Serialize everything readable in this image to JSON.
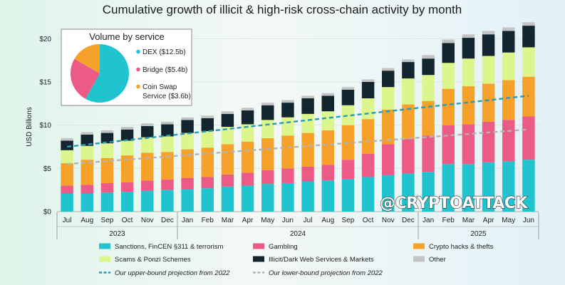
{
  "colors": {
    "sanctions": "#1fc4cf",
    "gambling": "#ec5a86",
    "hacks": "#f5a12a",
    "scams": "#dcf58c",
    "darkweb": "#132630",
    "other": "#c4c4c4",
    "upper_proj": "#2a9bb5",
    "lower_proj": "#b4b4b4",
    "pie_dex": "#1fc4cf",
    "pie_bridge": "#ec5a86",
    "pie_swap": "#f5a12a"
  },
  "watermark": "@CRYPTOATTACK",
  "chart_data": {
    "type": "bar",
    "stacked": true,
    "title": "Cumulative growth of illicit & high-risk cross-chain activity by month",
    "ylabel": "USD Billions",
    "xlabel": "",
    "ylim": [
      0,
      22
    ],
    "yticks": [
      0,
      5,
      10,
      15,
      20
    ],
    "ytick_labels": [
      "$0",
      "$5",
      "$10",
      "$15",
      "$20"
    ],
    "categories": [
      "Jul",
      "Aug",
      "Sep",
      "Oct",
      "Nov",
      "Dec",
      "Jan",
      "Feb",
      "Mar",
      "Apr",
      "May",
      "Jun",
      "Jul",
      "Aug",
      "Sep",
      "Oct",
      "Nov",
      "Dec",
      "Jan",
      "Feb",
      "Mar",
      "Apr",
      "May",
      "Jun"
    ],
    "year_groups": [
      {
        "label": "2023",
        "start": 0,
        "end": 5
      },
      {
        "label": "2024",
        "start": 6,
        "end": 17
      },
      {
        "label": "2025",
        "start": 18,
        "end": 23
      }
    ],
    "series": [
      {
        "name": "Sanctions, FinCEN §311 & terrorism",
        "key": "sanctions",
        "values": [
          2.1,
          2.1,
          2.2,
          2.3,
          2.4,
          2.5,
          2.6,
          2.7,
          2.9,
          3.0,
          3.2,
          3.3,
          3.5,
          3.6,
          3.8,
          4.0,
          4.2,
          4.4,
          4.6,
          5.5,
          5.5,
          5.7,
          5.8,
          6.0
        ]
      },
      {
        "name": "Gambling",
        "key": "gambling",
        "values": [
          0.9,
          1.0,
          1.1,
          1.1,
          1.2,
          1.2,
          1.3,
          1.3,
          1.4,
          1.5,
          1.6,
          1.7,
          1.7,
          1.8,
          2.2,
          2.7,
          3.6,
          4.0,
          4.2,
          4.5,
          4.6,
          4.7,
          4.8,
          5.0
        ]
      },
      {
        "name": "Crypto hacks & thefts",
        "key": "hacks",
        "values": [
          2.6,
          2.9,
          2.9,
          3.1,
          3.2,
          3.2,
          3.3,
          3.4,
          3.5,
          3.6,
          3.7,
          3.8,
          3.9,
          4.0,
          4.0,
          4.0,
          4.0,
          4.0,
          4.0,
          4.2,
          4.4,
          4.4,
          4.6,
          4.6
        ]
      },
      {
        "name": "Scams & Ponzi Schemes",
        "key": "scams",
        "values": [
          1.5,
          1.6,
          1.7,
          1.7,
          1.8,
          1.8,
          1.9,
          1.9,
          2.0,
          2.0,
          2.1,
          2.1,
          2.2,
          2.2,
          2.3,
          2.4,
          2.6,
          3.0,
          3.0,
          3.0,
          3.2,
          3.2,
          3.2,
          3.4
        ]
      },
      {
        "name": "Illicit/Dark Web Services & Markets",
        "key": "darkweb",
        "values": [
          1.1,
          1.3,
          1.2,
          1.3,
          1.3,
          1.4,
          1.5,
          1.5,
          1.5,
          1.6,
          1.7,
          1.7,
          1.8,
          1.8,
          1.8,
          1.9,
          1.9,
          1.9,
          1.9,
          2.3,
          2.4,
          2.5,
          2.5,
          2.5
        ]
      },
      {
        "name": "Other",
        "key": "other",
        "values": [
          0.3,
          0.3,
          0.3,
          0.3,
          0.3,
          0.3,
          0.3,
          0.3,
          0.3,
          0.3,
          0.3,
          0.3,
          0.3,
          0.3,
          0.3,
          0.3,
          0.3,
          0.3,
          0.4,
          0.4,
          0.4,
          0.4,
          0.4,
          0.4
        ]
      }
    ],
    "projections": [
      {
        "name": "Our upper-bound projection from 2022",
        "key": "upper_proj",
        "start": 7.5,
        "end": 13.4
      },
      {
        "name": "Our lower-bound projection from 2022",
        "key": "lower_proj",
        "start": 5.5,
        "end": 9.5
      }
    ],
    "inset_pie": {
      "title": "Volume by service",
      "slices": [
        {
          "label": "DEX ($12.5b)",
          "value": 12.5,
          "key": "pie_dex"
        },
        {
          "label": "Bridge ($5.4b)",
          "value": 5.4,
          "key": "pie_bridge"
        },
        {
          "label_lines": [
            "Coin Swap",
            "Service ($3.6b)"
          ],
          "value": 3.6,
          "key": "pie_swap"
        }
      ]
    }
  }
}
